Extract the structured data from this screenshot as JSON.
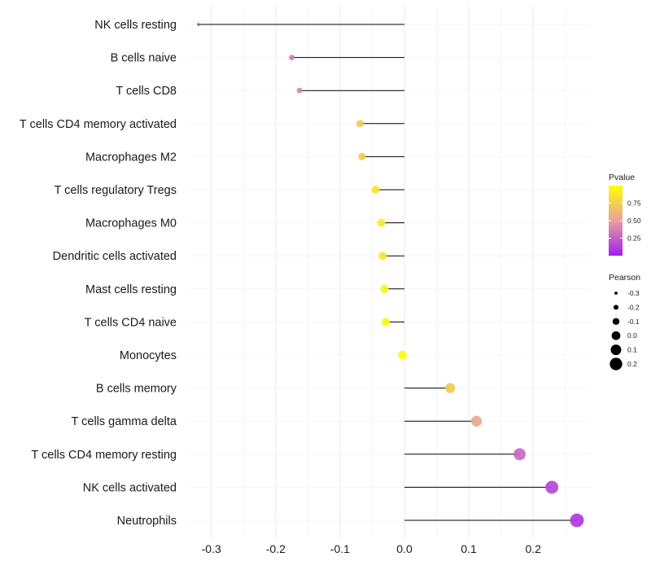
{
  "chart_data": {
    "type": "lollipop",
    "title": "",
    "xlabel": "",
    "ylabel": "",
    "xlim": [
      -0.34,
      0.3
    ],
    "x_ticks": [
      -0.3,
      -0.2,
      -0.1,
      0.0,
      0.1,
      0.2
    ],
    "x_tick_labels": [
      "-0.3",
      "-0.2",
      "-0.1",
      "0.0",
      "0.1",
      "0.2"
    ],
    "baseline": 0.0,
    "grid": true,
    "categories": [
      "NK cells resting",
      "B cells naive",
      "T cells CD8",
      "T cells CD4 memory activated",
      "Macrophages M2",
      "T cells regulatory  Tregs ",
      "Macrophages M0",
      "Dendritic cells activated",
      "Mast cells resting",
      "T cells CD4 naive",
      "Monocytes",
      "B cells memory",
      "T cells gamma delta",
      "T cells CD4 memory resting",
      "NK cells activated",
      "Neutrophils"
    ],
    "values": [
      -0.32,
      -0.175,
      -0.163,
      -0.069,
      -0.066,
      -0.045,
      -0.036,
      -0.034,
      -0.031,
      -0.029,
      -0.003,
      0.071,
      0.112,
      0.179,
      0.229,
      0.268
    ],
    "pvalues": [
      0.05,
      0.35,
      0.4,
      0.72,
      0.74,
      0.86,
      0.89,
      0.87,
      0.93,
      0.95,
      0.99,
      0.72,
      0.55,
      0.28,
      0.16,
      0.1
    ],
    "color_scale": {
      "variable": "Pvalue",
      "low_color": "#a020f0",
      "mid_color": "#e8a0a0",
      "high_color": "#ffff00",
      "range": [
        0,
        1
      ],
      "ticks": [
        0.25,
        0.5,
        0.75
      ],
      "tick_labels": [
        "0.25",
        "0.50",
        "0.75"
      ]
    },
    "size_scale": {
      "variable": "Pearson",
      "ticks": [
        -0.3,
        -0.2,
        -0.1,
        0.0,
        0.1,
        0.2
      ],
      "tick_labels": [
        "-0.3",
        "-0.2",
        "-0.1",
        "0.0",
        "0.1",
        "0.2"
      ]
    },
    "legend_position": "right"
  }
}
